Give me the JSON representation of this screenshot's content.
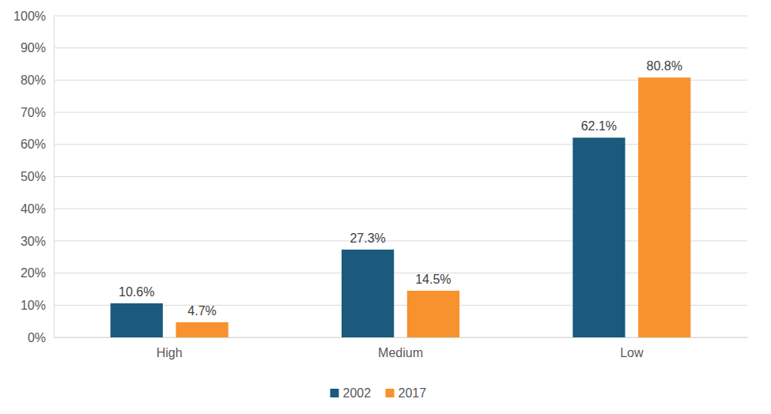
{
  "chart_data": {
    "type": "bar",
    "categories": [
      "High",
      "Medium",
      "Low"
    ],
    "series": [
      {
        "name": "2002",
        "color": "#1b5a7d",
        "values": [
          10.6,
          27.3,
          62.1
        ],
        "value_labels": [
          "10.6%",
          "27.3%",
          "62.1%"
        ]
      },
      {
        "name": "2017",
        "color": "#f7922e",
        "values": [
          4.7,
          14.5,
          80.8
        ],
        "value_labels": [
          "4.7%",
          "14.5%",
          "80.8%"
        ]
      }
    ],
    "ylim": [
      0,
      100
    ],
    "yticks": [
      {
        "value": 0,
        "label": "0%"
      },
      {
        "value": 10,
        "label": "10%"
      },
      {
        "value": 20,
        "label": "20%"
      },
      {
        "value": 30,
        "label": "30%"
      },
      {
        "value": 40,
        "label": "40%"
      },
      {
        "value": 50,
        "label": "50%"
      },
      {
        "value": 60,
        "label": "60%"
      },
      {
        "value": 70,
        "label": "70%"
      },
      {
        "value": 80,
        "label": "80%"
      },
      {
        "value": 90,
        "label": "90%"
      },
      {
        "value": 100,
        "label": "100%"
      }
    ],
    "grid": true,
    "legend": "bottom",
    "data_labels": true
  }
}
